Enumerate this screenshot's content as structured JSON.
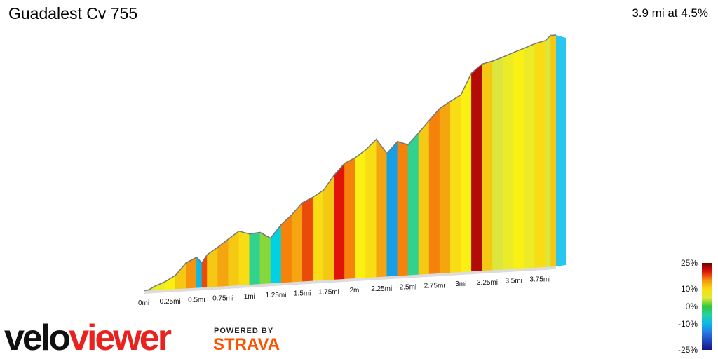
{
  "header": {
    "title": "Guadalest Cv 755",
    "summary": "3.9 mi at 4.5%"
  },
  "branding": {
    "logo_part1": "velo",
    "logo_part2": "viewer",
    "powered_by": "POWERED BY",
    "strava": "STRAVA"
  },
  "chart_data": {
    "type": "area",
    "xlabel": "",
    "ylabel": "",
    "x_ticks": [
      "0mi",
      "0.25mi",
      "0.5mi",
      "0.75mi",
      "1mi",
      "1.25mi",
      "1.5mi",
      "1.75mi",
      "2mi",
      "2.25mi",
      "2.5mi",
      "2.75mi",
      "3mi",
      "3.25mi",
      "3.5mi",
      "3.75mi"
    ],
    "x_tick_values": [
      0,
      0.25,
      0.5,
      0.75,
      1,
      1.25,
      1.5,
      1.75,
      2,
      2.25,
      2.5,
      2.75,
      3,
      3.25,
      3.5,
      3.75
    ],
    "xlim": [
      0,
      3.9
    ],
    "distance_mi": [
      0,
      0.05,
      0.1,
      0.2,
      0.3,
      0.4,
      0.5,
      0.55,
      0.6,
      0.7,
      0.8,
      0.9,
      1.0,
      1.1,
      1.2,
      1.3,
      1.4,
      1.5,
      1.6,
      1.7,
      1.8,
      1.9,
      2.0,
      2.1,
      2.2,
      2.3,
      2.4,
      2.5,
      2.6,
      2.7,
      2.8,
      2.9,
      3.0,
      3.1,
      3.2,
      3.3,
      3.4,
      3.5,
      3.6,
      3.7,
      3.8,
      3.85,
      3.9
    ],
    "relative_elevation": [
      0,
      2,
      8,
      16,
      28,
      52,
      62,
      50,
      66,
      80,
      95,
      110,
      103,
      105,
      92,
      118,
      137,
      160,
      170,
      183,
      212,
      235,
      245,
      260,
      280,
      250,
      273,
      265,
      288,
      312,
      335,
      348,
      360,
      403,
      420,
      425,
      432,
      440,
      447,
      455,
      460,
      470,
      470
    ],
    "gradient_pct": [
      -6,
      4,
      6,
      8,
      12,
      15,
      -10,
      18,
      12,
      14,
      12,
      10,
      -4,
      2,
      -8,
      16,
      14,
      18,
      10,
      12,
      20,
      16,
      8,
      10,
      14,
      -12,
      16,
      -4,
      12,
      16,
      14,
      10,
      8,
      22,
      12,
      4,
      6,
      8,
      6,
      10,
      4,
      12,
      0
    ],
    "legend": {
      "labels": [
        "25%",
        "10%",
        "0%",
        "-10%",
        "-25%"
      ],
      "values": [
        25,
        10,
        0,
        -10,
        -25
      ]
    },
    "grid": false
  }
}
